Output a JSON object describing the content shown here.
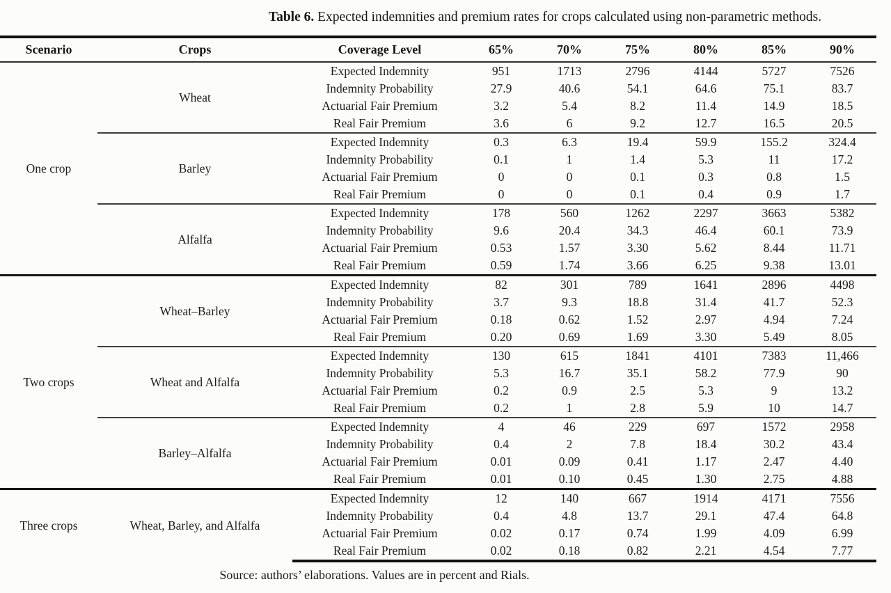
{
  "page": {
    "caption_label": "Table 6.",
    "caption_text": " Expected indemnities and premium rates for crops calculated using non-parametric methods.",
    "source_note": "Source: authors’ elaborations. Values are in percent and Rials."
  },
  "table": {
    "columns": [
      "Scenario",
      "Crops",
      "Coverage Level",
      "65%",
      "70%",
      "75%",
      "80%",
      "85%",
      "90%"
    ],
    "metric_labels": [
      "Expected Indemnity",
      "Indemnity Probability",
      "Actuarial Fair Premium",
      "Real Fair Premium"
    ],
    "groups": [
      {
        "scenario": "One crop",
        "crops": [
          {
            "name": "Wheat",
            "rows": [
              {
                "metric": "Expected Indemnity",
                "values": [
                  "951",
                  "1713",
                  "2796",
                  "4144",
                  "5727",
                  "7526"
                ]
              },
              {
                "metric": "Indemnity Probability",
                "values": [
                  "27.9",
                  "40.6",
                  "54.1",
                  "64.6",
                  "75.1",
                  "83.7"
                ]
              },
              {
                "metric": "Actuarial Fair Premium",
                "values": [
                  "3.2",
                  "5.4",
                  "8.2",
                  "11.4",
                  "14.9",
                  "18.5"
                ]
              },
              {
                "metric": "Real Fair Premium",
                "values": [
                  "3.6",
                  "6",
                  "9.2",
                  "12.7",
                  "16.5",
                  "20.5"
                ]
              }
            ]
          },
          {
            "name": "Barley",
            "rows": [
              {
                "metric": "Expected Indemnity",
                "values": [
                  "0.3",
                  "6.3",
                  "19.4",
                  "59.9",
                  "155.2",
                  "324.4"
                ]
              },
              {
                "metric": "Indemnity Probability",
                "values": [
                  "0.1",
                  "1",
                  "1.4",
                  "5.3",
                  "11",
                  "17.2"
                ]
              },
              {
                "metric": "Actuarial Fair Premium",
                "values": [
                  "0",
                  "0",
                  "0.1",
                  "0.3",
                  "0.8",
                  "1.5"
                ]
              },
              {
                "metric": "Real Fair Premium",
                "values": [
                  "0",
                  "0",
                  "0.1",
                  "0.4",
                  "0.9",
                  "1.7"
                ]
              }
            ]
          },
          {
            "name": "Alfalfa",
            "rows": [
              {
                "metric": "Expected Indemnity",
                "values": [
                  "178",
                  "560",
                  "1262",
                  "2297",
                  "3663",
                  "5382"
                ]
              },
              {
                "metric": "Indemnity Probability",
                "values": [
                  "9.6",
                  "20.4",
                  "34.3",
                  "46.4",
                  "60.1",
                  "73.9"
                ]
              },
              {
                "metric": "Actuarial Fair Premium",
                "values": [
                  "0.53",
                  "1.57",
                  "3.30",
                  "5.62",
                  "8.44",
                  "11.71"
                ]
              },
              {
                "metric": "Real Fair Premium",
                "values": [
                  "0.59",
                  "1.74",
                  "3.66",
                  "6.25",
                  "9.38",
                  "13.01"
                ]
              }
            ]
          }
        ]
      },
      {
        "scenario": "Two crops",
        "crops": [
          {
            "name": "Wheat–Barley",
            "rows": [
              {
                "metric": "Expected Indemnity",
                "values": [
                  "82",
                  "301",
                  "789",
                  "1641",
                  "2896",
                  "4498"
                ]
              },
              {
                "metric": "Indemnity Probability",
                "values": [
                  "3.7",
                  "9.3",
                  "18.8",
                  "31.4",
                  "41.7",
                  "52.3"
                ]
              },
              {
                "metric": "Actuarial Fair Premium",
                "values": [
                  "0.18",
                  "0.62",
                  "1.52",
                  "2.97",
                  "4.94",
                  "7.24"
                ]
              },
              {
                "metric": "Real Fair Premium",
                "values": [
                  "0.20",
                  "0.69",
                  "1.69",
                  "3.30",
                  "5.49",
                  "8.05"
                ]
              }
            ]
          },
          {
            "name": "Wheat and Alfalfa",
            "rows": [
              {
                "metric": "Expected Indemnity",
                "values": [
                  "130",
                  "615",
                  "1841",
                  "4101",
                  "7383",
                  "11,466"
                ]
              },
              {
                "metric": "Indemnity Probability",
                "values": [
                  "5.3",
                  "16.7",
                  "35.1",
                  "58.2",
                  "77.9",
                  "90"
                ]
              },
              {
                "metric": "Actuarial Fair Premium",
                "values": [
                  "0.2",
                  "0.9",
                  "2.5",
                  "5.3",
                  "9",
                  "13.2"
                ]
              },
              {
                "metric": "Real Fair Premium",
                "values": [
                  "0.2",
                  "1",
                  "2.8",
                  "5.9",
                  "10",
                  "14.7"
                ]
              }
            ]
          },
          {
            "name": "Barley–Alfalfa",
            "rows": [
              {
                "metric": "Expected Indemnity",
                "values": [
                  "4",
                  "46",
                  "229",
                  "697",
                  "1572",
                  "2958"
                ]
              },
              {
                "metric": "Indemnity Probability",
                "values": [
                  "0.4",
                  "2",
                  "7.8",
                  "18.4",
                  "30.2",
                  "43.4"
                ]
              },
              {
                "metric": "Actuarial Fair Premium",
                "values": [
                  "0.01",
                  "0.09",
                  "0.41",
                  "1.17",
                  "2.47",
                  "4.40"
                ]
              },
              {
                "metric": "Real Fair Premium",
                "values": [
                  "0.01",
                  "0.10",
                  "0.45",
                  "1.30",
                  "2.75",
                  "4.88"
                ]
              }
            ]
          }
        ]
      },
      {
        "scenario": "Three crops",
        "crops": [
          {
            "name": "Wheat, Barley, and Alfalfa",
            "rows": [
              {
                "metric": "Expected Indemnity",
                "values": [
                  "12",
                  "140",
                  "667",
                  "1914",
                  "4171",
                  "7556"
                ]
              },
              {
                "metric": "Indemnity Probability",
                "values": [
                  "0.4",
                  "4.8",
                  "13.7",
                  "29.1",
                  "47.4",
                  "64.8"
                ]
              },
              {
                "metric": "Actuarial Fair Premium",
                "values": [
                  "0.02",
                  "0.17",
                  "0.74",
                  "1.99",
                  "4.09",
                  "6.99"
                ]
              },
              {
                "metric": "Real Fair Premium",
                "values": [
                  "0.02",
                  "0.18",
                  "0.82",
                  "2.21",
                  "4.54",
                  "7.77"
                ]
              }
            ]
          }
        ]
      }
    ]
  }
}
